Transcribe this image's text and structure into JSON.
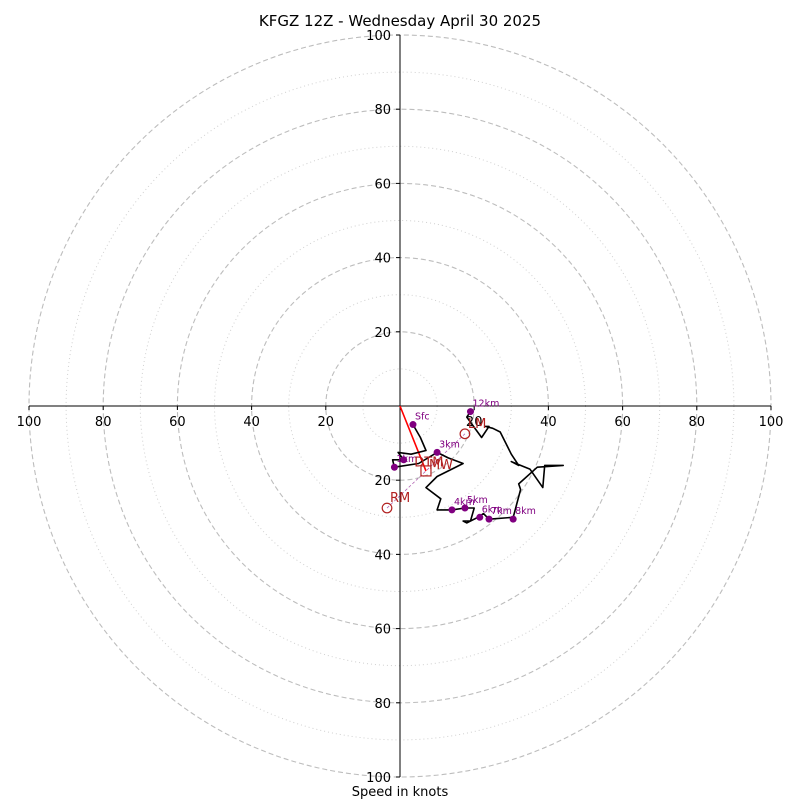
{
  "chart_data": {
    "type": "hodograph",
    "title": "KFGZ 12Z - Wednesday April 30 2025",
    "xlabel": "Speed in knots",
    "units": "knots",
    "range": [
      -100,
      100
    ],
    "major_ring_speeds": [
      10,
      20,
      30,
      40,
      50,
      60,
      70,
      80,
      90,
      100
    ],
    "dashed_rings": [
      20,
      40,
      60,
      80,
      100
    ],
    "dotted_rings": [
      10,
      30,
      50,
      70,
      90
    ],
    "axis_tick_values": [
      20,
      40,
      60,
      80,
      100
    ],
    "grid": true,
    "hodograph_trace": {
      "name": "wind profile",
      "color": "#000000",
      "points": [
        [
          3.5,
          -5
        ],
        [
          5.5,
          -8.5
        ],
        [
          7,
          -12
        ],
        [
          3,
          -13
        ],
        [
          -0.5,
          -12.5
        ],
        [
          1,
          -14.5
        ],
        [
          -2,
          -14.5
        ],
        [
          -1.5,
          -16.5
        ],
        [
          5,
          -15.5
        ],
        [
          10,
          -12.5
        ],
        [
          13,
          -14
        ],
        [
          17,
          -15.5
        ],
        [
          10,
          -19
        ],
        [
          7,
          -22
        ],
        [
          11,
          -25
        ],
        [
          10,
          -28
        ],
        [
          14,
          -28
        ],
        [
          17.5,
          -27.5
        ],
        [
          20,
          -27.5
        ],
        [
          19,
          -31
        ],
        [
          17,
          -31
        ],
        [
          18,
          -31.5
        ],
        [
          21,
          -30
        ],
        [
          22.5,
          -29
        ],
        [
          24,
          -30.5
        ],
        [
          30.5,
          -30
        ],
        [
          32.5,
          -22.5
        ],
        [
          32,
          -21
        ],
        [
          37,
          -16.5
        ],
        [
          44,
          -16
        ],
        [
          39,
          -16
        ],
        [
          38.5,
          -22
        ],
        [
          35,
          -17
        ],
        [
          30,
          -15
        ],
        [
          32,
          -16
        ],
        [
          30,
          -13
        ],
        [
          27,
          -7
        ],
        [
          25,
          -6
        ],
        [
          23,
          -5.5
        ],
        [
          24,
          -5.5
        ],
        [
          22,
          -8.5
        ],
        [
          18,
          -3
        ],
        [
          19,
          -1.5
        ]
      ]
    },
    "height_markers": {
      "color": "#800080",
      "points": [
        {
          "label": "Sfc",
          "u": 3.5,
          "v": -5
        },
        {
          "label": "1km",
          "u": -1.5,
          "v": -16.5
        },
        {
          "label": "",
          "u": 1,
          "v": -14.5
        },
        {
          "label": "3km",
          "u": 10,
          "v": -12.5
        },
        {
          "label": "4km",
          "u": 14,
          "v": -28
        },
        {
          "label": "5km",
          "u": 17.5,
          "v": -27.5
        },
        {
          "label": "6km",
          "u": 21.5,
          "v": -30
        },
        {
          "label": "7km",
          "u": 24,
          "v": -30.5
        },
        {
          "label": "8km",
          "u": 30.5,
          "v": -30.5
        },
        {
          "label": "12km",
          "u": 19,
          "v": -1.5
        }
      ]
    },
    "motion_markers": [
      {
        "label": "LM",
        "u": 17.5,
        "v": -7.5,
        "shape": "circle",
        "color": "#b22222"
      },
      {
        "label": "RM",
        "u": -3.5,
        "v": -27.5,
        "shape": "circle",
        "color": "#b22222"
      },
      {
        "label": "MW",
        "u": 7,
        "v": -17.5,
        "shape": "square",
        "color": "#b22222"
      },
      {
        "label": "DTM",
        "u": 6,
        "v": -15.5,
        "shape": "none",
        "color": "#b22222"
      }
    ],
    "storm_vector": {
      "from": [
        0,
        0
      ],
      "to": [
        7,
        -17.5
      ],
      "color": "#ff0000"
    },
    "bunkers_shear_line": {
      "from": [
        -3.5,
        -27.5
      ],
      "to": [
        17.5,
        -7.5
      ],
      "color": "#800080"
    }
  }
}
